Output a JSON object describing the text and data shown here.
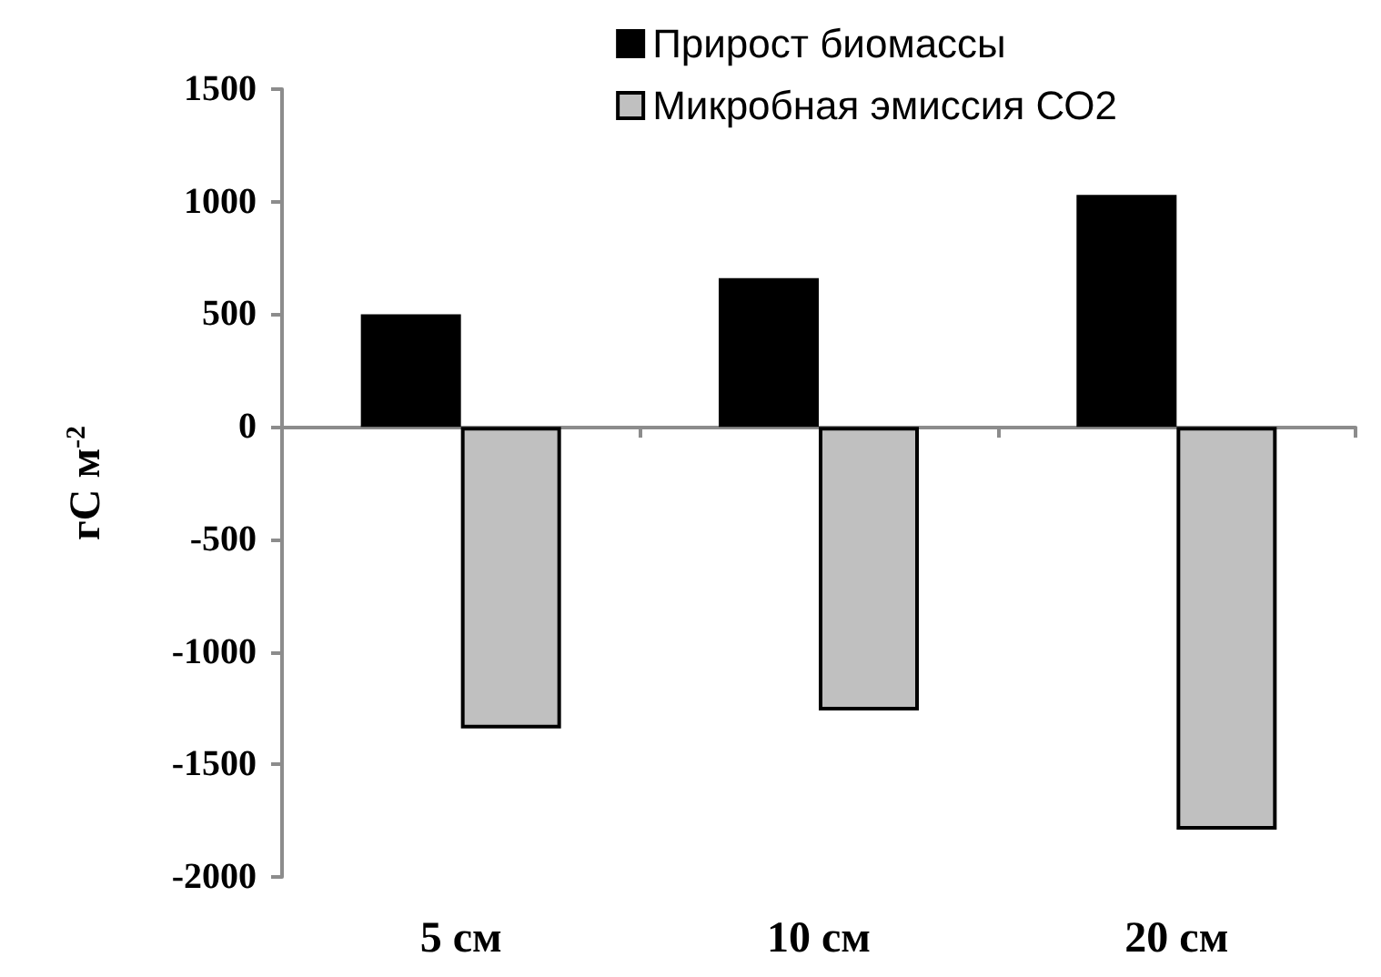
{
  "chart_data": {
    "type": "bar",
    "ylabel": "гС м$^{-2}$",
    "categories": [
      "5 см",
      "10 см",
      "20 см"
    ],
    "series": [
      {
        "name": "Прирост биомассы",
        "color": "#000000",
        "values": [
          500,
          660,
          1030
        ]
      },
      {
        "name": "Микробная эмиссия СО2",
        "color": "#c0c0c0",
        "values": [
          -1340,
          -1260,
          -1790
        ]
      }
    ],
    "ylim": [
      -2000,
      1500
    ],
    "yticks": [
      -2000,
      -1500,
      -1000,
      -500,
      0,
      500,
      1000,
      1500
    ],
    "legend": "top right"
  }
}
